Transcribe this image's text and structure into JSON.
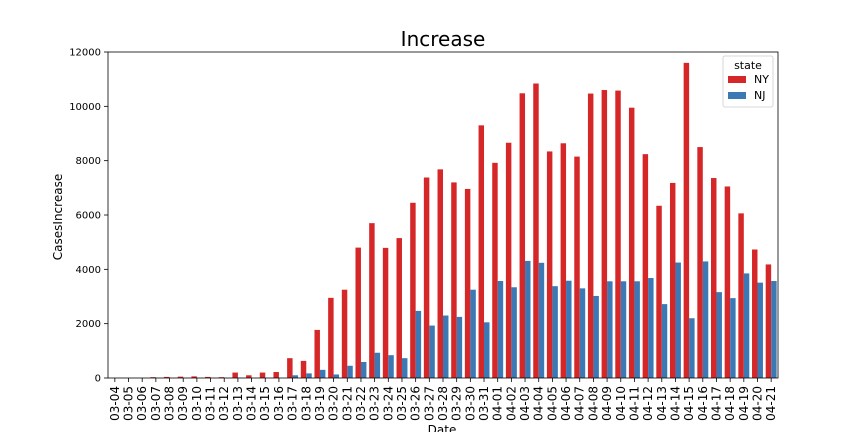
{
  "chart_data": {
    "type": "bar",
    "title": "Increase",
    "xlabel": "Date",
    "ylabel": "CasesIncrease",
    "ylim": [
      0,
      12000
    ],
    "yticks": [
      0,
      2000,
      4000,
      6000,
      8000,
      10000,
      12000
    ],
    "legend": {
      "title": "state",
      "placement": "top-right"
    },
    "categories": [
      "03-04",
      "03-05",
      "03-06",
      "03-07",
      "03-08",
      "03-09",
      "03-10",
      "03-11",
      "03-12",
      "03-13",
      "03-14",
      "03-15",
      "03-16",
      "03-17",
      "03-18",
      "03-19",
      "03-20",
      "03-21",
      "03-22",
      "03-23",
      "03-24",
      "03-25",
      "03-26",
      "03-27",
      "03-28",
      "03-29",
      "03-30",
      "03-31",
      "04-01",
      "04-02",
      "04-03",
      "04-04",
      "04-05",
      "04-06",
      "04-07",
      "04-08",
      "04-09",
      "04-10",
      "04-11",
      "04-12",
      "04-13",
      "04-14",
      "04-15",
      "04-16",
      "04-17",
      "04-18",
      "04-19",
      "04-20",
      "04-21"
    ],
    "series": [
      {
        "name": "NY",
        "color": "#d62728",
        "values": [
          0,
          0,
          0,
          30,
          40,
          50,
          60,
          40,
          30,
          200,
          100,
          200,
          220,
          730,
          630,
          1770,
          2950,
          3250,
          4800,
          5700,
          4790,
          5150,
          6450,
          7380,
          7680,
          7200,
          6960,
          9300,
          7920,
          8660,
          10480,
          10840,
          8340,
          8640,
          8150,
          10470,
          10600,
          10580,
          9950,
          8240,
          6340,
          7180,
          11600,
          8500,
          7360,
          7050,
          6060,
          4730,
          4180
        ]
      },
      {
        "name": "NJ",
        "color": "#3c78b4",
        "values": [
          0,
          0,
          0,
          0,
          0,
          0,
          0,
          0,
          0,
          10,
          0,
          0,
          0,
          100,
          170,
          300,
          130,
          450,
          590,
          930,
          840,
          730,
          2470,
          1930,
          2300,
          2250,
          3250,
          2050,
          3570,
          3340,
          4310,
          4240,
          3380,
          3580,
          3300,
          3020,
          3560,
          3560,
          3560,
          3680,
          2720,
          4250,
          2200,
          4290,
          3160,
          2940,
          3850,
          3510,
          3570
        ]
      }
    ]
  }
}
